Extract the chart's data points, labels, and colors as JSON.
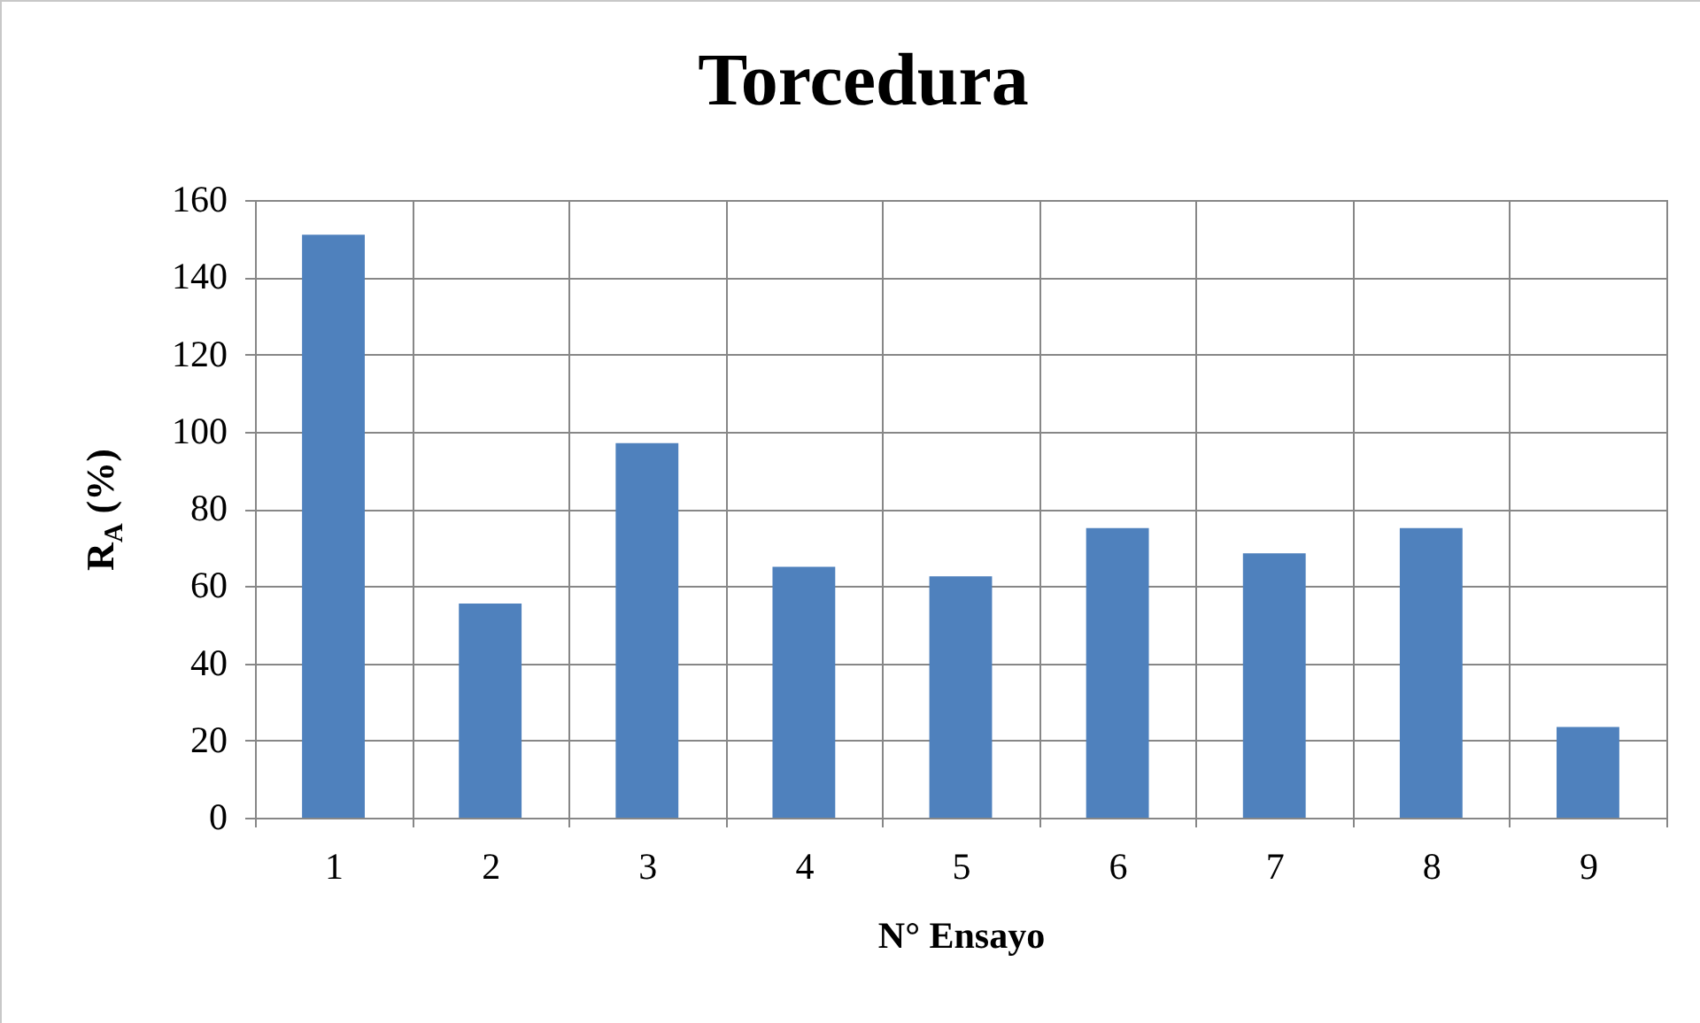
{
  "chart_data": {
    "type": "bar",
    "title": "Torcedura",
    "xlabel": "N° Ensayo",
    "ylabel": "R$_{A}$ (%)",
    "categories": [
      "1",
      "2",
      "3",
      "4",
      "5",
      "6",
      "7",
      "8",
      "9"
    ],
    "values": [
      151,
      55.5,
      97,
      65,
      62.5,
      75,
      68.5,
      75,
      23.5
    ],
    "color": "#4f81bd",
    "ylim": [
      0,
      160
    ],
    "yticks": [
      0,
      20,
      40,
      60,
      80,
      100,
      120,
      140,
      160
    ],
    "grid": true
  }
}
